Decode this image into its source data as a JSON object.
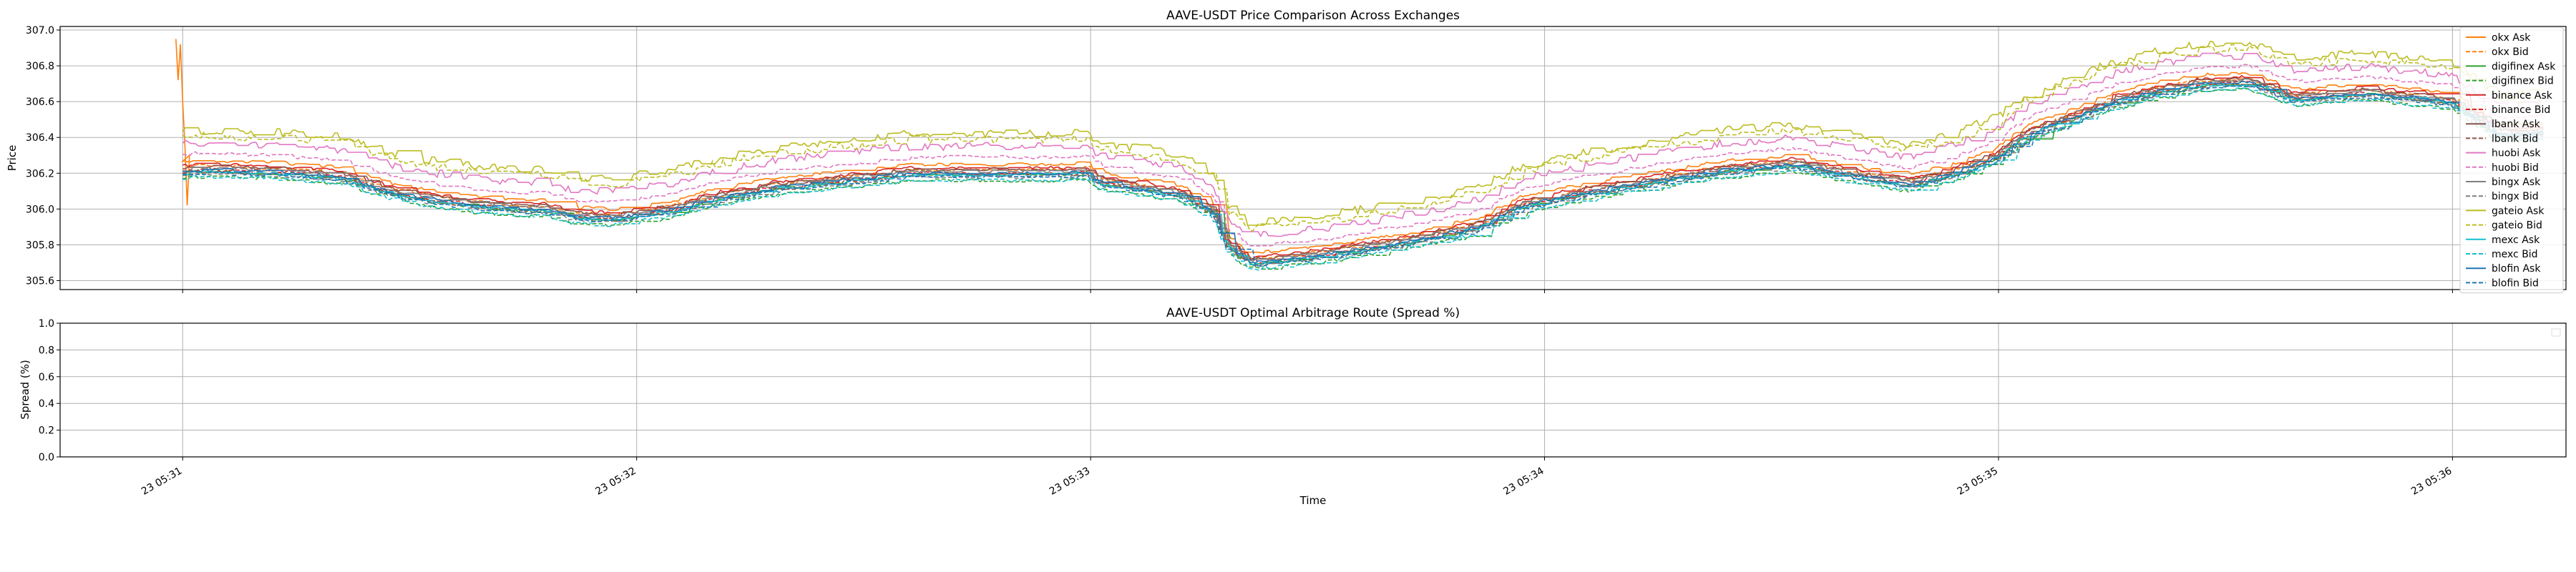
{
  "chart_data": [
    {
      "type": "line",
      "title": "AAVE-USDT Price Comparison Across Exchanges",
      "xlabel": "",
      "ylabel": "Price",
      "ylim": [
        305.55,
        307.02
      ],
      "yticks": [
        "305.6",
        "305.8",
        "306.0",
        "306.2",
        "306.4",
        "306.6",
        "306.8",
        "307.0"
      ],
      "ytick_values": [
        305.6,
        305.8,
        306.0,
        306.2,
        306.4,
        306.6,
        306.8,
        307.0
      ],
      "xlim_minutes": [
        30.73,
        36.25
      ],
      "xtick_values": [
        31,
        32,
        33,
        34,
        35,
        36
      ],
      "grid": true,
      "legend_placement": "upper right",
      "legend": [
        "okx Ask",
        "okx Bid",
        "digifinex Ask",
        "digifinex Bid",
        "binance Ask",
        "binance Bid",
        "lbank Ask",
        "lbank Bid",
        "huobi Ask",
        "huobi Bid",
        "bingx Ask",
        "bingx Bid",
        "gateio Ask",
        "gateio Bid",
        "mexc Ask",
        "mexc Bid",
        "blofin Ask",
        "blofin Bid"
      ],
      "base_curve_time_minutes": [
        31.0,
        31.02,
        31.05,
        31.2,
        31.35,
        31.45,
        31.55,
        31.65,
        31.75,
        31.8,
        31.86,
        31.95,
        32.0,
        32.08,
        32.15,
        32.3,
        32.6,
        32.85,
        32.95,
        32.99,
        33.02,
        33.1,
        33.2,
        33.27,
        33.3,
        33.35,
        33.5,
        33.7,
        33.85,
        33.95,
        34.1,
        34.3,
        34.4,
        34.55,
        34.65,
        34.8,
        34.9,
        35.0,
        35.05,
        35.1,
        35.15,
        35.25,
        35.35,
        35.45,
        35.55,
        35.65,
        35.8,
        36.0,
        36.1,
        36.2
      ],
      "base_curve_price": [
        306.21,
        306.22,
        306.22,
        306.21,
        306.18,
        306.1,
        306.05,
        306.02,
        306.0,
        306.0,
        305.96,
        305.95,
        305.97,
        306.0,
        306.05,
        306.12,
        306.2,
        306.2,
        306.2,
        306.21,
        306.15,
        306.12,
        306.08,
        305.98,
        305.8,
        305.7,
        305.74,
        305.82,
        305.9,
        306.02,
        306.1,
        306.18,
        306.22,
        306.25,
        306.2,
        306.14,
        306.2,
        306.3,
        306.4,
        306.46,
        306.5,
        306.6,
        306.66,
        306.7,
        306.71,
        306.62,
        306.65,
        306.6,
        306.42,
        306.43
      ],
      "series": [
        {
          "name": "okx Ask",
          "color": "#ff7f0e",
          "dash": "solid",
          "offset": 0.05
        },
        {
          "name": "okx Bid",
          "color": "#ff7f0e",
          "dash": "dashed",
          "offset": 0.02
        },
        {
          "name": "digifinex Ask",
          "color": "#2ca02c",
          "dash": "solid",
          "offset": -0.01
        },
        {
          "name": "digifinex Bid",
          "color": "#2ca02c",
          "dash": "dashed",
          "offset": -0.04
        },
        {
          "name": "binance Ask",
          "color": "#d62728",
          "dash": "solid",
          "offset": 0.03
        },
        {
          "name": "binance Bid",
          "color": "#d62728",
          "dash": "dashed",
          "offset": 0.0
        },
        {
          "name": "lbank Ask",
          "color": "#8c564b",
          "dash": "solid",
          "offset": 0.02
        },
        {
          "name": "lbank Bid",
          "color": "#8c564b",
          "dash": "dashed",
          "offset": -0.01
        },
        {
          "name": "huobi Ask",
          "color": "#e377c2",
          "dash": "solid",
          "offset": 0.15
        },
        {
          "name": "huobi Bid",
          "color": "#e377c2",
          "dash": "dashed",
          "offset": 0.09
        },
        {
          "name": "bingx Ask",
          "color": "#7f7f7f",
          "dash": "solid",
          "offset": 0.01
        },
        {
          "name": "bingx Bid",
          "color": "#7f7f7f",
          "dash": "dashed",
          "offset": -0.02
        },
        {
          "name": "gateio Ask",
          "color": "#bcbd22",
          "dash": "solid",
          "offset": 0.22
        },
        {
          "name": "gateio Bid",
          "color": "#bcbd22",
          "dash": "dashed",
          "offset": 0.19
        },
        {
          "name": "mexc Ask",
          "color": "#17becf",
          "dash": "solid",
          "offset": -0.01
        },
        {
          "name": "mexc Bid",
          "color": "#17becf",
          "dash": "dashed",
          "offset": -0.04
        },
        {
          "name": "blofin Ask",
          "color": "#1f77b4",
          "dash": "solid",
          "offset": 0.0
        },
        {
          "name": "blofin Bid",
          "color": "#1f77b4",
          "dash": "dashed",
          "offset": -0.02
        }
      ]
    },
    {
      "type": "line",
      "title": "AAVE-USDT Optimal Arbitrage Route (Spread %)",
      "xlabel": "Time",
      "ylabel": "Spread (%)",
      "ylim": [
        0.0,
        1.0
      ],
      "yticks": [
        "0.0",
        "0.2",
        "0.4",
        "0.6",
        "0.8",
        "1.0"
      ],
      "ytick_values": [
        0.0,
        0.2,
        0.4,
        0.6,
        0.8,
        1.0
      ],
      "xlim_minutes": [
        30.73,
        36.25
      ],
      "xtick_values": [
        31,
        32,
        33,
        34,
        35,
        36
      ],
      "xticks": [
        "23 05:31",
        "23 05:32",
        "23 05:33",
        "23 05:34",
        "23 05:35",
        "23 05:36"
      ],
      "grid": true,
      "series": []
    }
  ]
}
